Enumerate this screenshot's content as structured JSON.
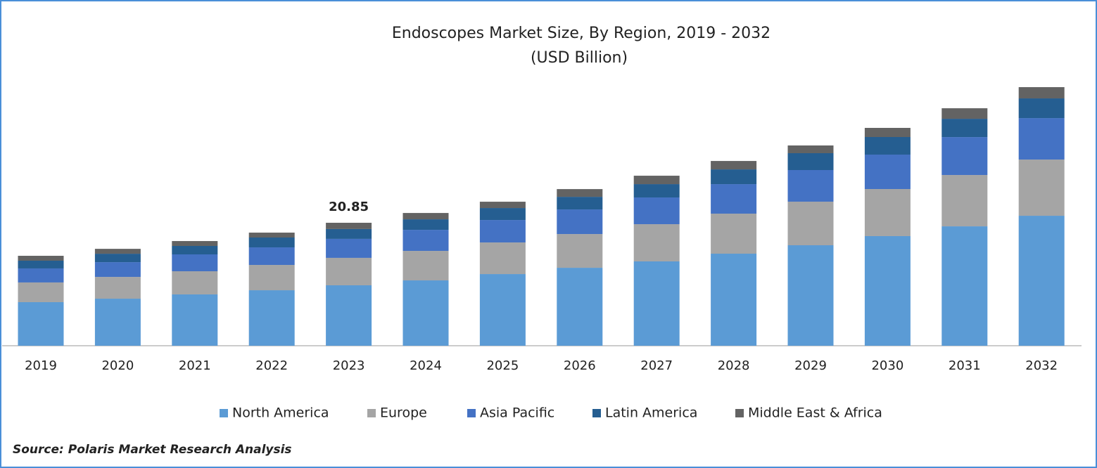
{
  "chart_data": {
    "type": "stacked_bar",
    "title": "Endoscopes  Market Size, By Region, 2019 - 2032",
    "subtitle": "(USD Billion)",
    "categories": [
      "2019",
      "2020",
      "2021",
      "2022",
      "2023",
      "2024",
      "2025",
      "2026",
      "2027",
      "2028",
      "2029",
      "2030",
      "2031",
      "2032"
    ],
    "series": [
      {
        "name": "North America",
        "color": "#5b9bd5",
        "values": [
          7.39,
          7.98,
          8.7,
          9.41,
          10.25,
          11.08,
          12.15,
          13.22,
          14.3,
          15.61,
          17.04,
          18.59,
          20.25,
          22.04
        ]
      },
      {
        "name": "Europe",
        "color": "#a5a5a5",
        "values": [
          3.34,
          3.69,
          3.93,
          4.29,
          4.65,
          5.0,
          5.36,
          5.72,
          6.31,
          6.79,
          7.39,
          7.98,
          8.7,
          9.53
        ]
      },
      {
        "name": "Asia Pacific",
        "color": "#4472c4",
        "values": [
          2.38,
          2.5,
          2.86,
          2.98,
          3.22,
          3.57,
          3.81,
          4.17,
          4.53,
          5.0,
          5.36,
          5.84,
          6.43,
          7.03
        ]
      },
      {
        "name": "Latin America",
        "color": "#255e91",
        "values": [
          1.31,
          1.43,
          1.43,
          1.67,
          1.67,
          1.79,
          2.03,
          2.14,
          2.26,
          2.5,
          2.86,
          2.98,
          3.1,
          3.34
        ]
      },
      {
        "name": "Middle East & Africa",
        "color": "#636363",
        "values": [
          0.83,
          0.83,
          0.83,
          0.83,
          1.06,
          1.07,
          1.07,
          1.31,
          1.43,
          1.43,
          1.31,
          1.55,
          1.79,
          1.91
        ]
      }
    ],
    "total_labels": [
      null,
      null,
      null,
      null,
      20.85,
      null,
      null,
      null,
      null,
      null,
      null,
      null,
      null,
      null
    ],
    "legend": "bottom",
    "source": "Source: Polaris Market Research Analysis"
  }
}
